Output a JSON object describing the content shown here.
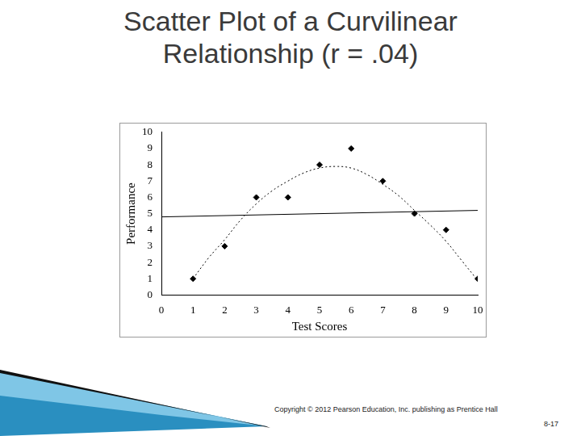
{
  "chart_data": {
    "type": "scatter",
    "title": "Scatter Plot of a Curvilinear Relationship (r = .04)",
    "x_label": "Test Scores",
    "y_label": "Performance",
    "footer": "Copyright © 2012 Pearson Education, Inc. publishing as Prentice Hall",
    "page_number": "8-17",
    "xlim": [
      0,
      10
    ],
    "xticks": [
      0,
      1,
      2,
      3,
      4,
      5,
      6,
      7,
      8,
      9,
      10
    ],
    "ylim": [
      0,
      10
    ],
    "yticks": [
      0,
      1,
      2,
      3,
      4,
      5,
      6,
      7,
      8,
      9,
      10
    ],
    "grid": false,
    "series": [
      {
        "type": "scatter",
        "marker": "diamond",
        "color": "#000000",
        "x": [
          1,
          2,
          3,
          4,
          5,
          6,
          7,
          8,
          9,
          10
        ],
        "values": [
          1,
          3,
          6,
          6,
          8,
          9,
          7,
          5,
          4,
          1
        ]
      },
      {
        "type": "line",
        "line_style": "solid",
        "color": "#000000",
        "x": [
          0,
          10
        ],
        "values": [
          4.8,
          5.2
        ]
      },
      {
        "type": "line",
        "line_style": "dotted",
        "color": "#000000",
        "x": [
          1,
          1.5,
          2,
          2.5,
          3,
          3.5,
          4,
          4.5,
          5,
          5.5,
          6,
          6.5,
          7,
          7.5,
          8,
          8.5,
          9,
          9.5,
          10
        ],
        "values": [
          1.0,
          2.3,
          3.4,
          4.6,
          5.6,
          6.4,
          7.0,
          7.5,
          7.8,
          7.9,
          7.8,
          7.4,
          6.8,
          6.1,
          5.2,
          4.3,
          3.3,
          2.1,
          0.9
        ]
      }
    ]
  }
}
